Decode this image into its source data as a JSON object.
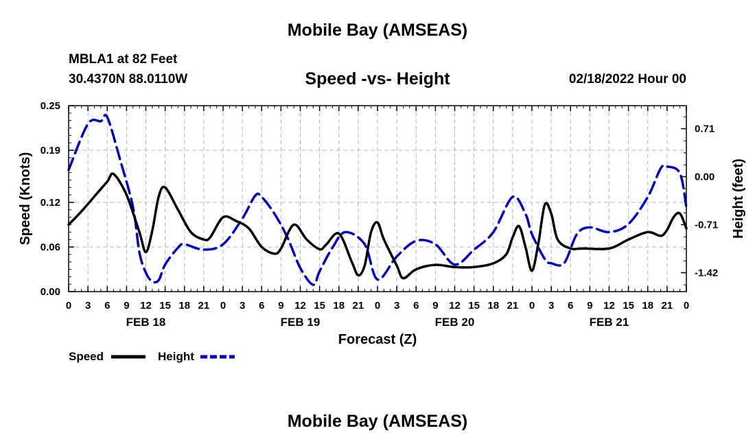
{
  "header": {
    "title": "Mobile Bay (AMSEAS)",
    "station": "MBLA1 at 82 Feet",
    "coords": "30.4370N  88.0110W",
    "subtitle": "Speed -vs- Height",
    "datetime": "02/18/2022 Hour 00",
    "footer_title": "Mobile Bay (AMSEAS)"
  },
  "chart_data": {
    "type": "line",
    "title": "Speed -vs- Height",
    "xlabel": "Forecast (Z)",
    "ylabel": "Speed (Knots)",
    "y2label": "Height (feet)",
    "xlim": [
      0,
      96
    ],
    "ylim": [
      0,
      0.25
    ],
    "y2lim": [
      -1.7,
      1.05
    ],
    "grid": true,
    "legend_position": "bottom-left",
    "x_tick_values": [
      0,
      3,
      6,
      9,
      12,
      15,
      18,
      21,
      24,
      27,
      30,
      33,
      36,
      39,
      42,
      45,
      48,
      51,
      54,
      57,
      60,
      63,
      66,
      69,
      72,
      75,
      78,
      81,
      84,
      87,
      90,
      93,
      96
    ],
    "x_tick_labels": [
      "0",
      "3",
      "6",
      "9",
      "12",
      "15",
      "18",
      "21",
      "0",
      "3",
      "6",
      "9",
      "12",
      "15",
      "18",
      "21",
      "0",
      "3",
      "6",
      "9",
      "12",
      "15",
      "18",
      "21",
      "0",
      "3",
      "6",
      "9",
      "12",
      "15",
      "18",
      "21",
      "0"
    ],
    "day_labels": [
      {
        "x": 12,
        "label": "FEB 18"
      },
      {
        "x": 36,
        "label": "FEB 19"
      },
      {
        "x": 60,
        "label": "FEB 20"
      },
      {
        "x": 84,
        "label": "FEB 21"
      }
    ],
    "y_ticks": [
      0.0,
      0.06,
      0.12,
      0.19,
      0.25
    ],
    "y_tick_labels": [
      "0.00",
      "0.06",
      "0.12",
      "0.19",
      "0.25"
    ],
    "y2_ticks": [
      0.71,
      0.0,
      -0.71,
      -1.42
    ],
    "y2_tick_labels": [
      "0.71",
      "0.00",
      "-0.71",
      "-1.42"
    ],
    "series": [
      {
        "name": "Speed",
        "axis": "left",
        "color": "#000000",
        "dash": "solid",
        "x": [
          0,
          2,
          4,
          6,
          7,
          9,
          11,
          12,
          13,
          14,
          15,
          17,
          19,
          21,
          22,
          24,
          26,
          28,
          30,
          32,
          33,
          35,
          37,
          39,
          40,
          42,
          44,
          45,
          46,
          47,
          48,
          49,
          51,
          52,
          54,
          57,
          60,
          63,
          66,
          68,
          69,
          70,
          71,
          72,
          73,
          74,
          75,
          76,
          78,
          80,
          84,
          87,
          90,
          92,
          93,
          94,
          95,
          96
        ],
        "values": [
          0.09,
          0.108,
          0.128,
          0.148,
          0.158,
          0.13,
          0.08,
          0.053,
          0.082,
          0.128,
          0.14,
          0.11,
          0.08,
          0.07,
          0.073,
          0.1,
          0.095,
          0.085,
          0.06,
          0.051,
          0.058,
          0.09,
          0.07,
          0.057,
          0.063,
          0.078,
          0.04,
          0.022,
          0.035,
          0.08,
          0.093,
          0.07,
          0.035,
          0.018,
          0.03,
          0.036,
          0.033,
          0.033,
          0.038,
          0.05,
          0.073,
          0.088,
          0.06,
          0.028,
          0.065,
          0.117,
          0.105,
          0.07,
          0.058,
          0.058,
          0.058,
          0.07,
          0.08,
          0.075,
          0.083,
          0.1,
          0.105,
          0.085
        ]
      },
      {
        "name": "Height",
        "axis": "right",
        "color": "#0000cc",
        "dash": "dashed",
        "x": [
          0,
          3,
          5,
          6,
          8,
          10,
          11,
          12,
          13,
          14,
          15,
          17,
          18,
          21,
          24,
          27,
          29,
          30,
          32,
          34,
          36,
          38,
          39,
          41,
          43,
          46,
          48,
          51,
          54,
          57,
          60,
          63,
          66,
          69,
          71,
          72,
          74,
          75,
          77,
          79,
          81,
          84,
          87,
          90,
          92,
          93,
          95,
          96
        ],
        "values": [
          0.1,
          0.78,
          0.82,
          0.88,
          0.25,
          -0.45,
          -1.12,
          -1.42,
          -1.55,
          -1.53,
          -1.3,
          -1.05,
          -1.0,
          -1.08,
          -1.0,
          -0.62,
          -0.28,
          -0.3,
          -0.55,
          -0.9,
          -1.35,
          -1.6,
          -1.4,
          -1.05,
          -0.82,
          -1.0,
          -1.52,
          -1.18,
          -0.95,
          -1.0,
          -1.3,
          -1.08,
          -0.82,
          -0.3,
          -0.55,
          -0.85,
          -1.22,
          -1.28,
          -1.28,
          -0.85,
          -0.75,
          -0.82,
          -0.7,
          -0.3,
          0.12,
          0.15,
          0.05,
          -0.45
        ]
      }
    ]
  }
}
